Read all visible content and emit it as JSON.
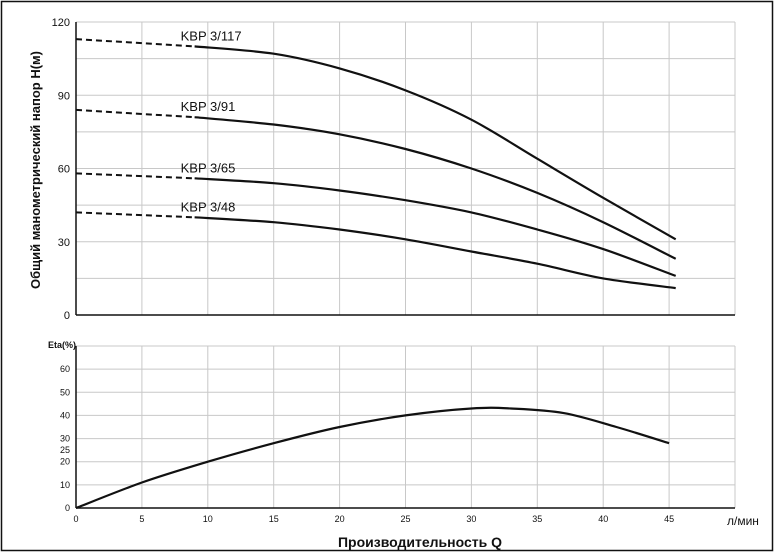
{
  "chart_data": [
    {
      "type": "line",
      "title": "",
      "ylabel": "Общий манометрический напор Н(м)",
      "xlabel": "",
      "xlim": [
        0,
        50
      ],
      "ylim": [
        0,
        120
      ],
      "x_ticks": [
        0,
        5,
        10,
        15,
        20,
        25,
        30,
        35,
        40,
        45
      ],
      "y_ticks": [
        0,
        30,
        60,
        90,
        120
      ],
      "grid": true,
      "series": [
        {
          "name": "KBP 3/117",
          "dashed_x": [
            0,
            9
          ],
          "dashed_y": [
            113,
            110
          ],
          "x": [
            9,
            15,
            20,
            25,
            30,
            35,
            40,
            45.5
          ],
          "y": [
            110,
            107,
            101,
            92,
            80,
            64,
            48,
            31
          ]
        },
        {
          "name": "KBP 3/91",
          "dashed_x": [
            0,
            9
          ],
          "dashed_y": [
            84,
            81
          ],
          "x": [
            9,
            15,
            20,
            25,
            30,
            35,
            40,
            45.5
          ],
          "y": [
            81,
            78,
            74,
            68,
            60,
            50,
            38,
            23
          ]
        },
        {
          "name": "KBP 3/65",
          "dashed_x": [
            0,
            9
          ],
          "dashed_y": [
            58,
            56
          ],
          "x": [
            9,
            15,
            20,
            25,
            30,
            35,
            40,
            45.5
          ],
          "y": [
            56,
            54,
            51,
            47,
            42,
            35,
            27,
            16
          ]
        },
        {
          "name": "KBP 3/48",
          "dashed_x": [
            0,
            9
          ],
          "dashed_y": [
            42,
            40
          ],
          "x": [
            9,
            15,
            20,
            25,
            30,
            35,
            40,
            45.5
          ],
          "y": [
            40,
            38,
            35,
            31,
            26,
            21,
            15,
            11
          ]
        }
      ]
    },
    {
      "type": "line",
      "title": "",
      "ylabel": "Eta(%)",
      "xlabel": "Производительность Q",
      "x_unit": "л/мин",
      "xlim": [
        0,
        50
      ],
      "ylim": [
        0,
        70
      ],
      "x_ticks": [
        0,
        5,
        10,
        15,
        20,
        25,
        30,
        35,
        40,
        45
      ],
      "y_ticks": [
        0,
        10,
        20,
        25,
        30,
        40,
        50,
        60
      ],
      "grid": true,
      "series": [
        {
          "name": "",
          "x": [
            0,
            5,
            10,
            15,
            20,
            25,
            30,
            33,
            37,
            41,
            45
          ],
          "y": [
            0,
            11,
            20,
            28,
            35,
            40,
            43,
            43,
            41,
            35,
            28
          ]
        }
      ]
    }
  ]
}
